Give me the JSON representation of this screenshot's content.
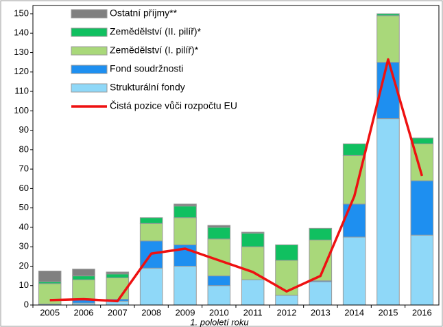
{
  "chart_data": {
    "type": "bar",
    "stacked": true,
    "categories": [
      "2005",
      "2006",
      "2007",
      "2008",
      "2009",
      "2010",
      "2011",
      "2012",
      "2013",
      "2014",
      "2015",
      "2016"
    ],
    "xlabel": "1. pololetí roku",
    "ylim": [
      0,
      150
    ],
    "yticks": [
      0,
      10,
      20,
      30,
      40,
      50,
      60,
      70,
      80,
      90,
      100,
      110,
      120,
      130,
      140,
      150
    ],
    "grid": false,
    "legend": "upper left",
    "series": [
      {
        "name": "Strukturální fondy",
        "color": "#8fd8f8",
        "values": [
          0.5,
          1,
          2,
          19,
          20,
          10,
          13,
          5,
          12,
          35,
          96,
          36
        ]
      },
      {
        "name": "Fond soudržnosti",
        "color": "#1e8ff0",
        "values": [
          0,
          2,
          1,
          14,
          11,
          5,
          0,
          0,
          0.5,
          17,
          29,
          28
        ]
      },
      {
        "name": "Zemědělství (I. pilíř)*",
        "color": "#a9d87a",
        "values": [
          10.5,
          10,
          11,
          9,
          14,
          19,
          17,
          18,
          21,
          25,
          24,
          19
        ]
      },
      {
        "name": "Zemědělství (II. pilíř)*",
        "color": "#10c060",
        "values": [
          1,
          2,
          2,
          3,
          6,
          6,
          7,
          8,
          6,
          6,
          1,
          3
        ]
      },
      {
        "name": "Ostatní příjmy**",
        "color": "#808080",
        "values": [
          5.5,
          3.5,
          1,
          0,
          1,
          1,
          0.5,
          0,
          0,
          0,
          0,
          0
        ]
      },
      {
        "name": "Čistá pozice vůči rozpočtu EU",
        "type": "line",
        "color": "#ee1111",
        "values": [
          2.5,
          3,
          2,
          26.5,
          29,
          23,
          17,
          7,
          15,
          56,
          126.5,
          66.5
        ]
      }
    ]
  }
}
